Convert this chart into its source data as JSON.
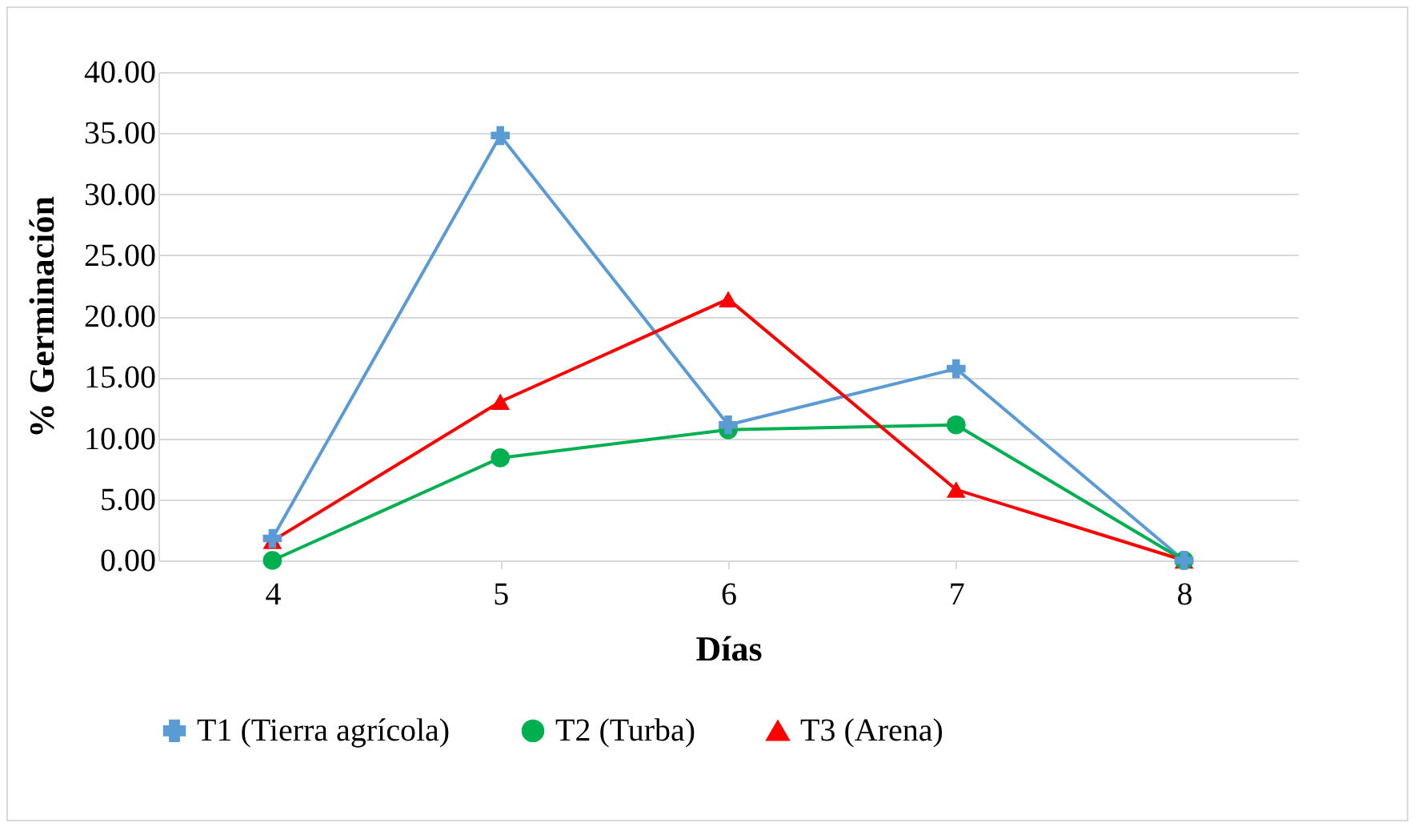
{
  "chart_data": {
    "type": "line",
    "xlabel": "Días",
    "ylabel": "% Germinación",
    "categories": [
      "4",
      "5",
      "6",
      "7",
      "8"
    ],
    "series": [
      {
        "name": "T1 (Tierra agrícola)",
        "color": "#5b9bd5",
        "marker": "cross",
        "values": [
          1.8,
          34.8,
          11.1,
          15.7,
          0
        ]
      },
      {
        "name": "T2 (Turba)",
        "color": "#00b050",
        "marker": "circle",
        "values": [
          0,
          8.4,
          10.7,
          11.1,
          0
        ]
      },
      {
        "name": "T3 (Arena)",
        "color": "#ff0000",
        "marker": "triangle",
        "values": [
          1.6,
          13.0,
          21.4,
          5.8,
          0
        ]
      }
    ],
    "ylim": [
      0,
      40
    ],
    "yticks": [
      {
        "value": 0,
        "label": "0.00"
      },
      {
        "value": 5,
        "label": "5.00"
      },
      {
        "value": 10,
        "label": "10.00"
      },
      {
        "value": 15,
        "label": "15.00"
      },
      {
        "value": 20,
        "label": "20.00"
      },
      {
        "value": 25,
        "label": "25.00"
      },
      {
        "value": 30,
        "label": "30.00"
      },
      {
        "value": 35,
        "label": "35.00"
      },
      {
        "value": 40,
        "label": "40.00"
      }
    ],
    "grid": "y",
    "legend": "bottom",
    "line_style": "solid"
  }
}
